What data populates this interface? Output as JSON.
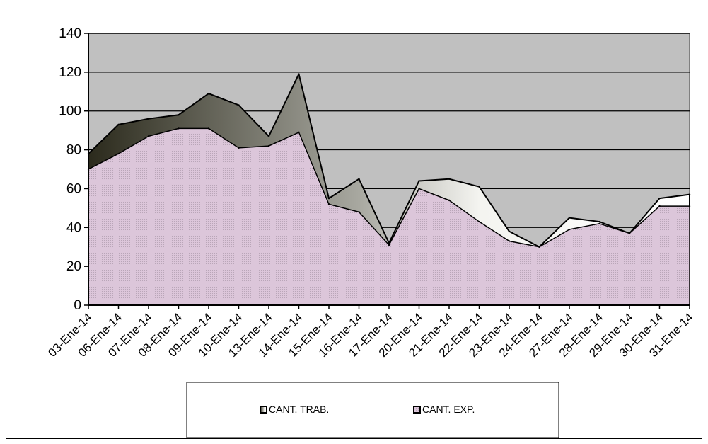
{
  "chart_data": {
    "type": "area",
    "categories": [
      "03-Ene-14",
      "06-Ene-14",
      "07-Ene-14",
      "08-Ene-14",
      "09-Ene-14",
      "10-Ene-14",
      "13-Ene-14",
      "14-Ene-14",
      "15-Ene-14",
      "16-Ene-14",
      "17-Ene-14",
      "20-Ene-14",
      "21-Ene-14",
      "22-Ene-14",
      "23-Ene-14",
      "24-Ene-14",
      "27-Ene-14",
      "28-Ene-14",
      "29-Ene-14",
      "30-Ene-14",
      "31-Ene-14"
    ],
    "series": [
      {
        "name": "CANT. TRAB.",
        "values": [
          78,
          93,
          96,
          98,
          109,
          103,
          87,
          119,
          55,
          65,
          32,
          64,
          65,
          61,
          38,
          30,
          45,
          43,
          37,
          55,
          57
        ]
      },
      {
        "name": "CANT. EXP.",
        "values": [
          70,
          78,
          87,
          91,
          91,
          81,
          82,
          89,
          52,
          48,
          31,
          60,
          54,
          43,
          33,
          30,
          39,
          42,
          37,
          51,
          51
        ]
      }
    ],
    "ylim": [
      0,
      140
    ],
    "yticks": [
      0,
      20,
      40,
      60,
      80,
      100,
      120,
      140
    ],
    "grid": true,
    "legend_position": "bottom",
    "colors": {
      "plot_background": "#c0c0c0",
      "exp_fill": "#d9c3d6",
      "trab_dark": "#2b2a1c",
      "trab_light": "#ffffff"
    }
  }
}
